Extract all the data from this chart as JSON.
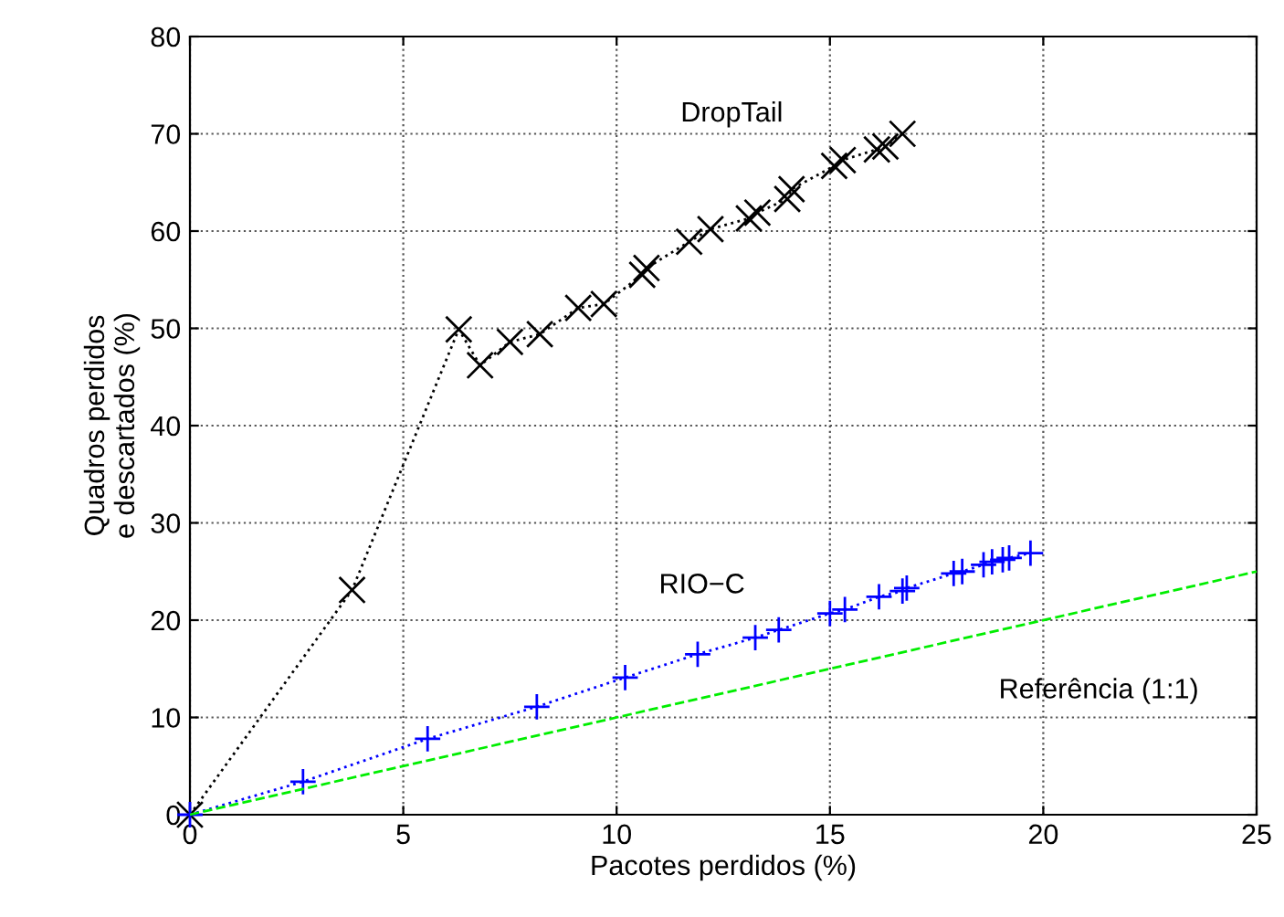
{
  "chart_data": {
    "type": "line",
    "xlabel": "Pacotes perdidos (%)",
    "ylabel": "Quadros perdidos\ne descartados (%)",
    "xlim": [
      0,
      25
    ],
    "xticks": [
      0,
      5,
      10,
      15,
      20,
      25
    ],
    "ylim": [
      0,
      80
    ],
    "yticks": [
      0,
      10,
      20,
      30,
      40,
      50,
      60,
      70,
      80
    ],
    "grid": true,
    "legend": false,
    "series": [
      {
        "name": "DropTail",
        "color": "#000000",
        "marker": "x",
        "line_style": "dotted",
        "x": [
          0,
          3.8,
          6.3,
          6.8,
          7.5,
          8.2,
          9.1,
          9.7,
          10.6,
          10.7,
          11.7,
          12.2,
          13.1,
          13.3,
          14.0,
          14.1,
          15.1,
          15.3,
          16.1,
          16.3,
          16.7
        ],
        "values": [
          0,
          23.1,
          49.9,
          46.2,
          48.6,
          49.4,
          52.1,
          52.5,
          55.5,
          56.2,
          58.9,
          60.2,
          61.3,
          61.9,
          63.3,
          64.3,
          66.7,
          67.3,
          68.4,
          68.7,
          70
        ]
      },
      {
        "name": "RIO−C",
        "color": "#0000ff",
        "marker": "cross",
        "line_style": "dotted",
        "x": [
          0,
          2.65,
          5.57,
          8.13,
          10.2,
          11.9,
          13.25,
          13.8,
          15.0,
          15.35,
          16.15,
          16.7,
          16.8,
          17.9,
          18.1,
          18.6,
          18.8,
          19.05,
          19.2,
          19.7
        ],
        "values": [
          0,
          3.4,
          7.8,
          11.1,
          14.1,
          16.5,
          18.2,
          19.0,
          20.7,
          21.1,
          22.4,
          23.0,
          23.3,
          24.8,
          25.0,
          25.7,
          26.0,
          26.2,
          26.4,
          26.9
        ]
      },
      {
        "name": "Referência (1:1)",
        "color": "#00ee00",
        "marker": "none",
        "line_style": "dashed",
        "x": [
          0,
          25
        ],
        "values": [
          0,
          25
        ]
      }
    ]
  }
}
